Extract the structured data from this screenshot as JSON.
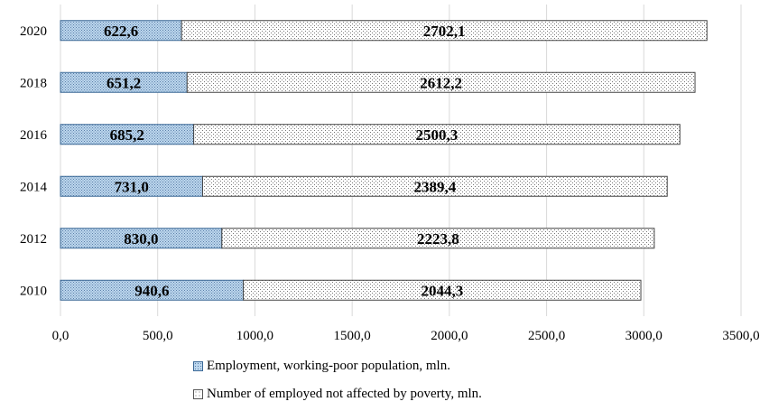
{
  "chart_data": {
    "type": "bar",
    "orientation": "horizontal",
    "stacked": true,
    "categories": [
      "2020",
      "2018",
      "2016",
      "2014",
      "2012",
      "2010"
    ],
    "series": [
      {
        "name": "Employment, working-poor population, mln.",
        "values": [
          622.6,
          651.2,
          685.2,
          731.0,
          830.0,
          940.6
        ],
        "labels": [
          "622,6",
          "651,2",
          "685,2",
          "731,0",
          "830,0",
          "940,6"
        ],
        "fill": "#bdd7ee",
        "pattern": "fine-dots"
      },
      {
        "name": "Number of employed not affected by poverty, mln.",
        "values": [
          2702.1,
          2612.2,
          2500.3,
          2389.4,
          2223.8,
          2044.3
        ],
        "labels": [
          "2702,1",
          "2612,2",
          "2500,3",
          "2389,4",
          "2223,8",
          "2044,3"
        ],
        "fill": "#ffffff",
        "pattern": "sparse-dots"
      }
    ],
    "x_ticks": [
      "0,0",
      "500,0",
      "1000,0",
      "1500,0",
      "2000,0",
      "2500,0",
      "3000,0",
      "3500,0"
    ],
    "xlim": [
      0,
      3500
    ],
    "grid": "vertical",
    "legend": "bottom",
    "title": "",
    "xlabel": "",
    "ylabel": ""
  }
}
